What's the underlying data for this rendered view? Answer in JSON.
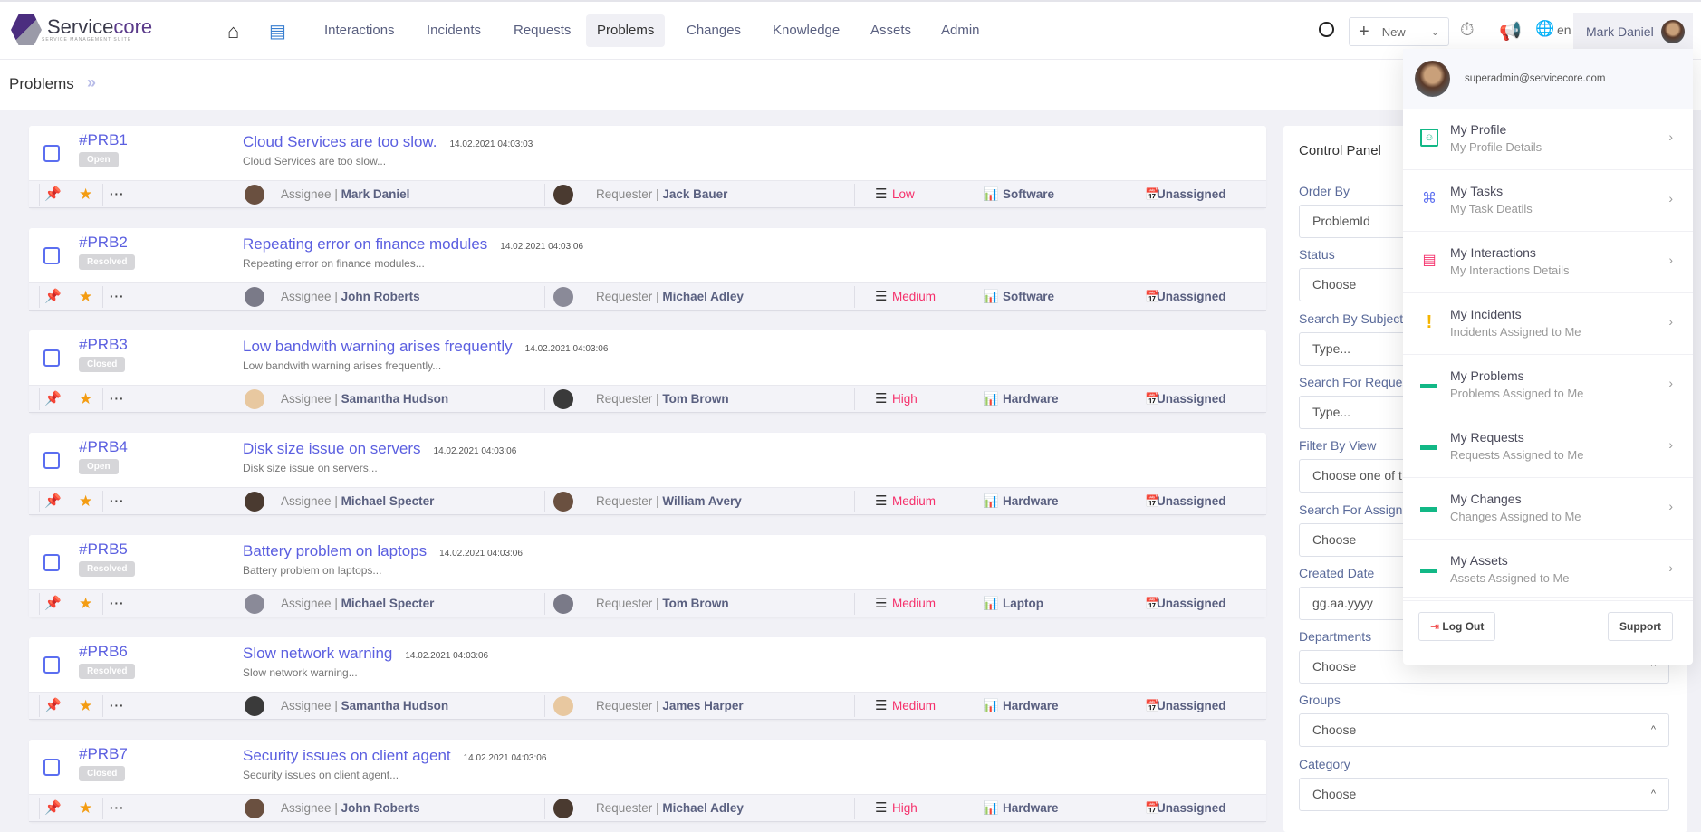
{
  "brand": {
    "name_a": "Service",
    "name_b": "core",
    "tagline": "SERVICE MANAGEMENT SUITE"
  },
  "nav": {
    "items": [
      "Interactions",
      "Incidents",
      "Requests",
      "Problems",
      "Changes",
      "Knowledge",
      "Assets",
      "Admin"
    ],
    "active": "Problems"
  },
  "toolbar": {
    "new_label": "New",
    "lang": "en",
    "user_name": "Mark Daniel"
  },
  "breadcrumb": {
    "title": "Problems"
  },
  "colors": {
    "accent": "#5b5fe0",
    "priority": "#f5306b",
    "success": "#12b886"
  },
  "problems": [
    {
      "id": "#PRB1",
      "status": "Open",
      "title": "Cloud Services are too slow.",
      "date": "14.02.2021 04:03:03",
      "desc": "Cloud Services are too slow...",
      "assignee": "Mark Daniel",
      "requester": "Jack Bauer",
      "priority": "Low",
      "category": "Software",
      "group": "Unassigned"
    },
    {
      "id": "#PRB2",
      "status": "Resolved",
      "title": "Repeating error on finance modules",
      "date": "14.02.2021 04:03:06",
      "desc": "Repeating error on finance modules...",
      "assignee": "John Roberts",
      "requester": "Michael Adley",
      "priority": "Medium",
      "category": "Software",
      "group": "Unassigned"
    },
    {
      "id": "#PRB3",
      "status": "Closed",
      "title": "Low bandwith warning arises frequently",
      "date": "14.02.2021 04:03:06",
      "desc": "Low bandwith warning arises frequently...",
      "assignee": "Samantha Hudson",
      "requester": "Tom Brown",
      "priority": "High",
      "category": "Hardware",
      "group": "Unassigned"
    },
    {
      "id": "#PRB4",
      "status": "Open",
      "title": "Disk size issue on servers",
      "date": "14.02.2021 04:03:06",
      "desc": "Disk size issue on servers...",
      "assignee": "Michael Specter",
      "requester": "William Avery",
      "priority": "Medium",
      "category": "Hardware",
      "group": "Unassigned"
    },
    {
      "id": "#PRB5",
      "status": "Resolved",
      "title": "Battery problem on laptops",
      "date": "14.02.2021 04:03:06",
      "desc": "Battery problem on laptops...",
      "assignee": "Michael Specter",
      "requester": "Tom Brown",
      "priority": "Medium",
      "category": "Laptop",
      "group": "Unassigned"
    },
    {
      "id": "#PRB6",
      "status": "Resolved",
      "title": "Slow network warning",
      "date": "14.02.2021 04:03:06",
      "desc": "Slow network warning...",
      "assignee": "Samantha Hudson",
      "requester": "James Harper",
      "priority": "Medium",
      "category": "Hardware",
      "group": "Unassigned"
    },
    {
      "id": "#PRB7",
      "status": "Closed",
      "title": "Security issues on client agent",
      "date": "14.02.2021 04:03:06",
      "desc": "Security issues on client agent...",
      "assignee": "John Roberts",
      "requester": "Michael Adley",
      "priority": "High",
      "category": "Hardware",
      "group": "Unassigned"
    }
  ],
  "labels": {
    "assignee": "Assignee",
    "requester": "Requester",
    "sep": "|"
  },
  "control_panel": {
    "title": "Control Panel",
    "fields": [
      {
        "label": "Order By",
        "value": "ProblemId"
      },
      {
        "label": "Status",
        "value": "Choose"
      },
      {
        "label": "Search By Subject",
        "value": "Type..."
      },
      {
        "label": "Search For Reques",
        "value": "Type..."
      },
      {
        "label": "Filter By View",
        "value": "Choose one of t"
      },
      {
        "label": "Search For Assign",
        "value": "Choose"
      },
      {
        "label": "Created Date",
        "value": "gg.aa.yyyy"
      },
      {
        "label": "Departments",
        "value": "Choose"
      },
      {
        "label": "Groups",
        "value": "Choose"
      },
      {
        "label": "Category",
        "value": "Choose"
      }
    ]
  },
  "user_menu": {
    "email": "superadmin@servicecore.com",
    "items": [
      {
        "title": "My Profile",
        "sub": "My Profile Details",
        "icon": "profile-badge-icon"
      },
      {
        "title": "My Tasks",
        "sub": "My Task Deatils",
        "icon": "dna-icon"
      },
      {
        "title": "My Interactions",
        "sub": "My Interactions Details",
        "icon": "chat-icon"
      },
      {
        "title": "My Incidents",
        "sub": "Incidents Assigned to Me",
        "icon": "exclamation-icon"
      },
      {
        "title": "My Problems",
        "sub": "Problems Assigned to Me",
        "icon": "bar-icon"
      },
      {
        "title": "My Requests",
        "sub": "Requests Assigned to Me",
        "icon": "bar-icon"
      },
      {
        "title": "My Changes",
        "sub": "Changes Assigned to Me",
        "icon": "bar-icon"
      },
      {
        "title": "My Assets",
        "sub": "Assets Assigned to Me",
        "icon": "bar-icon"
      }
    ],
    "logout": "Log Out",
    "support": "Support"
  }
}
